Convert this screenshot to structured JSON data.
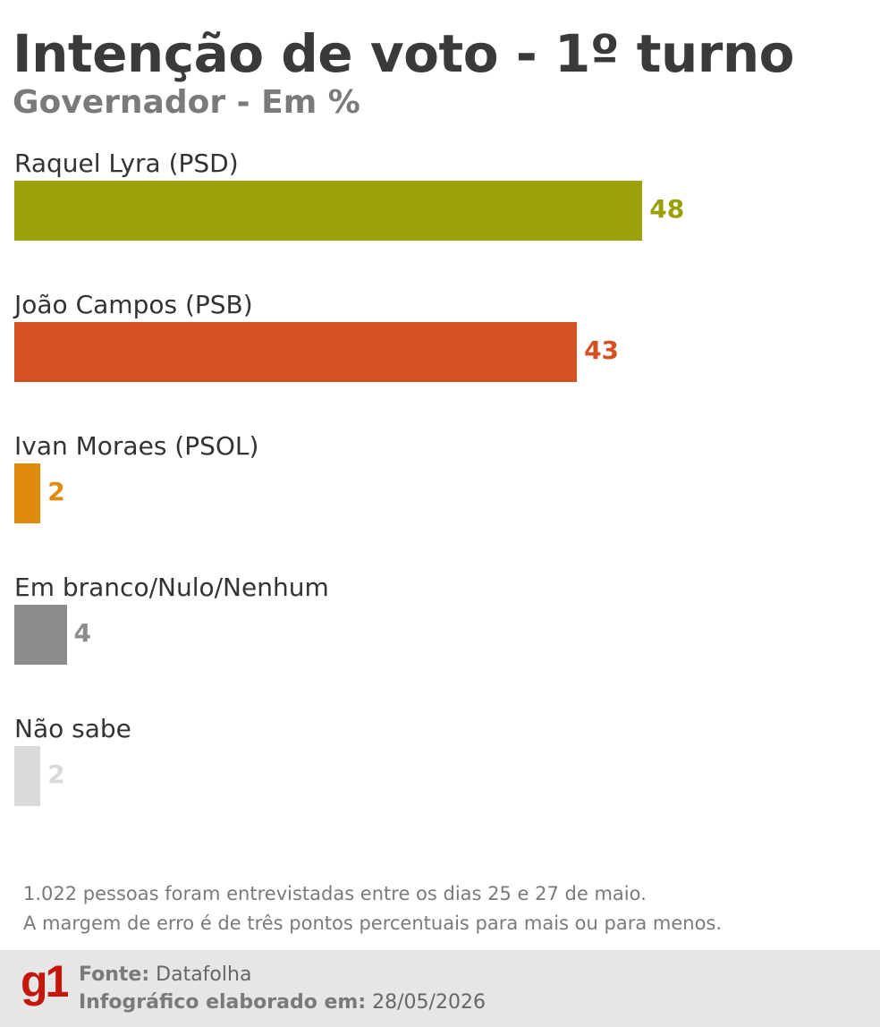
{
  "chart_data": {
    "type": "bar",
    "orientation": "horizontal",
    "title": "Intenção de voto - 1º turno",
    "subtitle": "Governador - Em %",
    "categories": [
      "Raquel Lyra (PSD)",
      "João Campos (PSB)",
      "Ivan Moraes (PSOL)",
      "Em branco/Nulo/Nenhum",
      "Não sabe"
    ],
    "values": [
      48,
      43,
      2,
      4,
      2
    ],
    "colors": [
      "#9ba10a",
      "#d45122",
      "#e08a0b",
      "#8c8c8c",
      "#d9d9d9"
    ],
    "value_labels": [
      "48",
      "43",
      "2",
      "4",
      "2"
    ],
    "grid": false,
    "legend": "none"
  },
  "notes": [
    "1.022 pessoas foram entrevistadas entre os dias 25 e 27 de maio.",
    "A margem de erro é de três pontos percentuais para mais ou para menos."
  ],
  "footer": {
    "logo_text": "g1",
    "logo_color": "#c4170c",
    "source_label": "Fonte:",
    "source_value": "Datafolha",
    "date_label": "Infográfico elaborado em:",
    "date_value": "28/05/2026"
  }
}
